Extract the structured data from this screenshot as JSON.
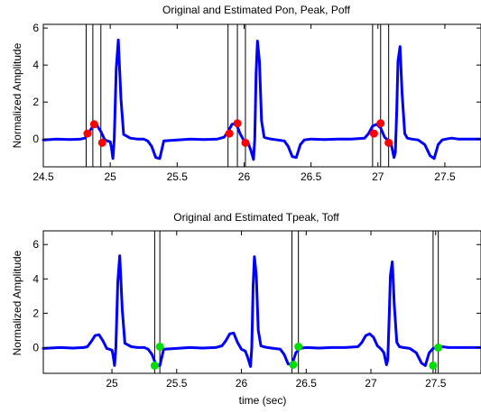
{
  "chart_data": [
    {
      "type": "line",
      "title": "Original and Estimated Pon, Peak, Poff",
      "xlabel": "",
      "ylabel": "Normalized Amplitude",
      "xlim": [
        24.5,
        27.77
      ],
      "ylim": [
        -1.5,
        6.2
      ],
      "xticks": [
        24.5,
        25,
        25.5,
        26,
        26.5,
        27,
        27.5
      ],
      "yticks": [
        0,
        2,
        4,
        6
      ],
      "line_color": "#0000ff",
      "marker_color": "#ff0000",
      "signal": {
        "x": [
          24.5,
          24.6,
          24.7,
          24.78,
          24.81,
          24.84,
          24.87,
          24.9,
          24.93,
          24.96,
          24.98,
          25.0,
          25.01,
          25.02,
          25.03,
          25.045,
          25.06,
          25.08,
          25.1,
          25.15,
          25.2,
          25.25,
          25.28,
          25.31,
          25.34,
          25.37,
          25.4,
          25.5,
          25.6,
          25.7,
          25.8,
          25.85,
          25.88,
          25.91,
          25.94,
          25.97,
          26.0,
          26.03,
          26.05,
          26.07,
          26.08,
          26.09,
          26.1,
          26.115,
          26.13,
          26.15,
          26.17,
          26.2,
          26.25,
          26.3,
          26.33,
          26.36,
          26.39,
          26.42,
          26.45,
          26.5,
          26.6,
          26.7,
          26.8,
          26.9,
          26.93,
          26.96,
          26.99,
          27.02,
          27.05,
          27.08,
          27.1,
          27.12,
          27.13,
          27.14,
          27.15,
          27.165,
          27.18,
          27.2,
          27.22,
          27.25,
          27.3,
          27.35,
          27.39,
          27.42,
          27.45,
          27.48,
          27.51,
          27.55,
          27.6,
          27.7,
          27.77
        ],
        "y": [
          -0.05,
          0.0,
          -0.03,
          0.0,
          0.05,
          0.35,
          0.7,
          0.75,
          0.4,
          -0.05,
          -0.1,
          -0.15,
          -0.5,
          -1.05,
          0.0,
          3.8,
          5.35,
          2.2,
          0.25,
          0.05,
          0.0,
          0.0,
          -0.1,
          -0.4,
          -1.0,
          -1.05,
          -0.1,
          -0.05,
          0.0,
          -0.03,
          0.0,
          0.1,
          0.4,
          0.8,
          0.85,
          0.3,
          -0.1,
          -0.2,
          -0.6,
          -1.1,
          0.0,
          3.6,
          5.3,
          4.2,
          1.0,
          0.1,
          0.05,
          0.0,
          -0.05,
          -0.1,
          -0.4,
          -0.95,
          -1.0,
          -0.3,
          -0.05,
          0.0,
          -0.03,
          0.0,
          0.0,
          0.05,
          0.3,
          0.7,
          0.8,
          0.6,
          0.1,
          -0.1,
          -0.3,
          -1.0,
          -0.7,
          1.5,
          4.2,
          5.0,
          2.5,
          0.3,
          0.05,
          0.0,
          -0.05,
          -0.3,
          -0.9,
          -1.05,
          -0.3,
          -0.05,
          0.0,
          0.05,
          0.0,
          0.0,
          0.0
        ]
      },
      "vlines": [
        24.82,
        24.87,
        24.93,
        25.88,
        25.95,
        26.01,
        26.96,
        27.02,
        27.08
      ],
      "markers": {
        "x": [
          24.83,
          24.88,
          24.94,
          25.89,
          25.95,
          26.01,
          26.97,
          27.02,
          27.08
        ],
        "y": [
          0.3,
          0.8,
          -0.2,
          0.3,
          0.85,
          -0.2,
          0.3,
          0.85,
          -0.2
        ]
      }
    },
    {
      "type": "line",
      "title": "Original and Estimated Tpeak, Toff",
      "xlabel": "time (sec)",
      "ylabel": "Normalized Amplitude",
      "xlim": [
        24.47,
        27.85
      ],
      "ylim": [
        -1.5,
        6.8
      ],
      "xticks": [
        25,
        25.5,
        26,
        26.5,
        27,
        27.5
      ],
      "yticks": [
        0,
        2,
        4,
        6
      ],
      "line_color": "#0000ff",
      "marker_color": "#00dd00",
      "signal": {
        "x": [
          24.47,
          24.6,
          24.7,
          24.78,
          24.81,
          24.84,
          24.87,
          24.9,
          24.93,
          24.96,
          24.98,
          25.0,
          25.01,
          25.02,
          25.03,
          25.045,
          25.06,
          25.08,
          25.1,
          25.15,
          25.2,
          25.25,
          25.28,
          25.31,
          25.34,
          25.37,
          25.4,
          25.5,
          25.6,
          25.7,
          25.8,
          25.85,
          25.88,
          25.91,
          25.94,
          25.97,
          26.0,
          26.03,
          26.05,
          26.07,
          26.08,
          26.09,
          26.1,
          26.115,
          26.13,
          26.15,
          26.17,
          26.2,
          26.25,
          26.3,
          26.33,
          26.36,
          26.39,
          26.42,
          26.45,
          26.5,
          26.6,
          26.7,
          26.8,
          26.9,
          26.93,
          26.96,
          26.99,
          27.02,
          27.05,
          27.08,
          27.1,
          27.12,
          27.13,
          27.14,
          27.15,
          27.165,
          27.18,
          27.2,
          27.22,
          27.25,
          27.3,
          27.35,
          27.39,
          27.42,
          27.45,
          27.48,
          27.51,
          27.55,
          27.6,
          27.7,
          27.85
        ],
        "y": [
          -0.05,
          0.0,
          -0.03,
          0.0,
          0.05,
          0.35,
          0.7,
          0.75,
          0.4,
          -0.05,
          -0.1,
          -0.15,
          -0.5,
          -1.05,
          0.0,
          3.8,
          5.35,
          2.2,
          0.25,
          0.05,
          0.0,
          0.0,
          -0.1,
          -0.4,
          -1.0,
          -1.05,
          -0.1,
          -0.05,
          0.0,
          -0.03,
          0.0,
          0.1,
          0.4,
          0.8,
          0.85,
          0.3,
          -0.1,
          -0.2,
          -0.6,
          -1.1,
          0.0,
          3.6,
          5.3,
          4.2,
          1.0,
          0.1,
          0.05,
          0.0,
          -0.05,
          -0.1,
          -0.4,
          -0.95,
          -1.0,
          -0.3,
          -0.05,
          0.0,
          -0.03,
          0.0,
          0.0,
          0.05,
          0.3,
          0.7,
          0.8,
          0.6,
          0.1,
          -0.1,
          -0.3,
          -1.0,
          -0.7,
          1.5,
          4.2,
          5.0,
          2.5,
          0.3,
          0.05,
          0.0,
          -0.05,
          -0.3,
          -0.9,
          -1.05,
          -0.3,
          -0.05,
          0.0,
          0.05,
          0.0,
          0.0,
          0.0
        ]
      },
      "vlines": [
        25.33,
        25.37,
        26.39,
        26.44,
        27.48,
        27.52
      ],
      "markers": {
        "x": [
          25.33,
          25.37,
          26.4,
          26.44,
          27.48,
          27.52
        ],
        "y": [
          -1.05,
          0.05,
          -1.0,
          0.05,
          -1.05,
          0.0
        ]
      }
    }
  ]
}
